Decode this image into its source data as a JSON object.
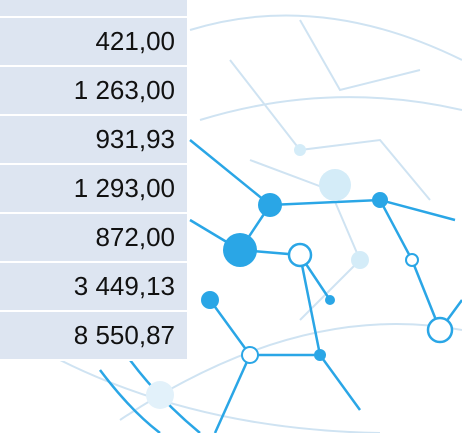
{
  "table": {
    "rows": [
      "421,00",
      "1 263,00",
      "931,93",
      "1 293,00",
      "872,00",
      "3 449,13",
      "8 550,87"
    ]
  }
}
